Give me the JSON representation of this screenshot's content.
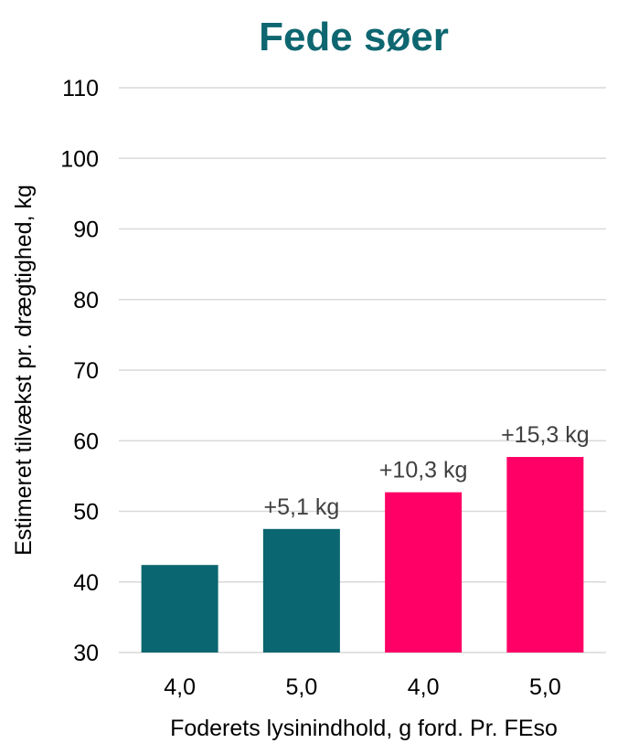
{
  "chart_data": {
    "type": "bar",
    "title": "Fede søer",
    "xlabel": "Foderets lysinindhold, g ford. Pr. FEso",
    "ylabel": "Estimeret tilvækst pr. drægtighed, kg",
    "categories": [
      "4,0",
      "5,0",
      "4,0",
      "5,0"
    ],
    "values": [
      42.4,
      47.5,
      52.7,
      57.7
    ],
    "data_labels": [
      "",
      "+5,1 kg",
      "+10,3 kg",
      "+15,3 kg"
    ],
    "ylim": [
      30,
      110
    ],
    "yticks": [
      "30",
      "40",
      "50",
      "60",
      "70",
      "80",
      "90",
      "100",
      "110"
    ],
    "grid": true,
    "colors": {
      "title": "#0e6670",
      "bars": [
        "#0a6670",
        "#0a6670",
        "#ff0066",
        "#ff0066"
      ],
      "grid": "#d9d9d9",
      "text": "#000000",
      "data_label": "#404040"
    }
  }
}
